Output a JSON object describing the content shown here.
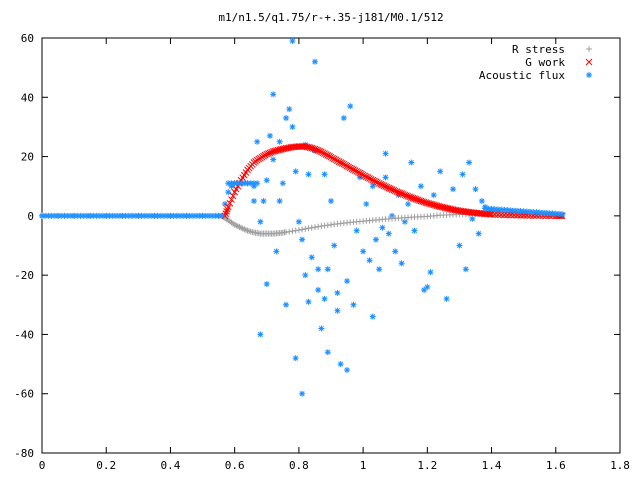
{
  "chart_data": {
    "type": "scatter",
    "title": "m1/n1.5/q1.75/r-+.35-j181/M0.1/512",
    "xlabel": "",
    "ylabel": "",
    "xlim": [
      0,
      1.8
    ],
    "ylim": [
      -80,
      60
    ],
    "xticks": [
      "0",
      "0.2",
      "0.4",
      "0.6",
      "0.8",
      "1",
      "1.2",
      "1.4",
      "1.6",
      "1.8"
    ],
    "yticks": [
      "-80",
      "-60",
      "-40",
      "-20",
      "0",
      "20",
      "40",
      "60"
    ],
    "grid": false,
    "legend_position": "top-right",
    "series": [
      {
        "name": "R stress",
        "marker": "plus",
        "color": "#a0a0a0",
        "x": [
          0.0,
          0.56,
          0.58,
          0.6,
          0.62,
          0.64,
          0.66,
          0.68,
          0.7,
          0.72,
          0.74,
          0.76,
          0.8,
          0.84,
          0.88,
          0.92,
          0.96,
          1.0,
          1.04,
          1.08,
          1.12,
          1.16,
          1.2,
          1.24,
          1.28,
          1.32,
          1.36,
          1.4,
          1.44,
          1.48,
          1.52,
          1.56,
          1.6,
          1.62
        ],
        "y": [
          0,
          0,
          -1.5,
          -3,
          -4,
          -5,
          -5.6,
          -6,
          -6,
          -6,
          -5.8,
          -5.5,
          -4.8,
          -4,
          -3.3,
          -2.7,
          -2.2,
          -1.8,
          -1.4,
          -1.0,
          -0.7,
          -0.4,
          -0.2,
          0.2,
          0.4,
          0.5,
          0.5,
          0.4,
          0.3,
          0.2,
          0.1,
          0.05,
          0,
          0
        ]
      },
      {
        "name": "G work",
        "marker": "cross",
        "color": "#ff0000",
        "x": [
          0.57,
          0.58,
          0.6,
          0.62,
          0.64,
          0.66,
          0.68,
          0.7,
          0.72,
          0.74,
          0.76,
          0.78,
          0.8,
          0.82,
          0.84,
          0.86,
          0.88,
          0.9,
          0.92,
          0.94,
          0.96,
          0.98,
          1.0,
          1.02,
          1.04,
          1.06,
          1.08,
          1.1,
          1.12,
          1.14,
          1.16,
          1.18,
          1.2,
          1.22,
          1.24,
          1.26,
          1.28,
          1.3,
          1.32,
          1.34,
          1.36,
          1.38,
          1.4,
          1.44,
          1.48,
          1.52,
          1.56,
          1.6,
          1.62
        ],
        "y": [
          0,
          3,
          8,
          12,
          15.5,
          18,
          19.5,
          20.8,
          21.7,
          22.3,
          22.8,
          23.2,
          23.4,
          23.4,
          22.9,
          22.1,
          21.0,
          19.8,
          18.6,
          17.4,
          16.2,
          15.0,
          13.8,
          12.6,
          11.5,
          10.4,
          9.4,
          8.4,
          7.5,
          6.6,
          5.8,
          5.0,
          4.3,
          3.7,
          3.1,
          2.6,
          2.1,
          1.7,
          1.4,
          1.1,
          0.9,
          0.7,
          0.5,
          0.3,
          0.2,
          0.1,
          0.05,
          0,
          0
        ]
      },
      {
        "name": "Acoustic flux",
        "marker": "star",
        "color": "#1e90ff",
        "x": [
          0.0,
          0.05,
          0.1,
          0.15,
          0.2,
          0.25,
          0.3,
          0.35,
          0.4,
          0.45,
          0.5,
          0.55,
          0.57,
          0.58,
          0.59,
          0.6,
          0.62,
          0.64,
          0.66,
          0.66,
          0.67,
          0.68,
          0.69,
          0.7,
          0.7,
          0.71,
          0.72,
          0.73,
          0.74,
          0.75,
          0.76,
          0.77,
          0.78,
          0.79,
          0.79,
          0.8,
          0.81,
          0.82,
          0.82,
          0.83,
          0.84,
          0.85,
          0.86,
          0.87,
          0.88,
          0.88,
          0.89,
          0.9,
          0.91,
          0.92,
          0.93,
          0.94,
          0.95,
          0.96,
          0.97,
          0.98,
          0.99,
          1.0,
          1.01,
          1.02,
          1.03,
          1.04,
          1.05,
          1.06,
          1.07,
          1.08,
          1.09,
          1.1,
          1.11,
          1.12,
          1.13,
          1.14,
          1.15,
          1.16,
          1.18,
          1.2,
          1.22,
          1.24,
          1.26,
          1.28,
          1.3,
          1.31,
          1.32,
          1.33,
          1.34,
          1.35,
          1.36,
          1.37,
          1.38,
          1.4,
          1.42,
          1.46,
          1.5,
          1.54,
          1.58,
          1.62,
          0.78,
          0.72,
          0.74,
          0.85,
          0.81,
          0.92,
          0.89,
          0.95,
          0.86,
          0.83,
          1.03,
          1.07,
          1.19,
          1.21,
          0.68,
          0.76
        ],
        "y": [
          0,
          0,
          0,
          0,
          0,
          0,
          0,
          0,
          0,
          0,
          0,
          0,
          4,
          8,
          10,
          11,
          11,
          11,
          10,
          5,
          25,
          -2,
          5,
          -23,
          12,
          27,
          41,
          -12,
          5,
          11,
          -30,
          36,
          59,
          -48,
          15,
          -2,
          -60,
          24,
          -20,
          14,
          -14,
          52,
          -25,
          -38,
          -28,
          14,
          -18,
          5,
          -10,
          -26,
          -50,
          33,
          -22,
          37,
          -30,
          -5,
          13,
          -12,
          4,
          -15,
          10,
          -8,
          -18,
          -4,
          13,
          -6,
          0,
          -12,
          7,
          -16,
          -2,
          4,
          18,
          -5,
          10,
          -24,
          7,
          15,
          -28,
          9,
          -10,
          14,
          -18,
          18,
          -1,
          9,
          -6,
          5,
          3,
          2,
          1.5,
          1,
          0.8,
          0.5,
          0.3,
          0,
          30,
          19,
          25,
          22,
          -8,
          -32,
          -46,
          -52,
          -18,
          -29,
          -34,
          21,
          -25,
          -19,
          -40,
          33
        ]
      }
    ]
  }
}
